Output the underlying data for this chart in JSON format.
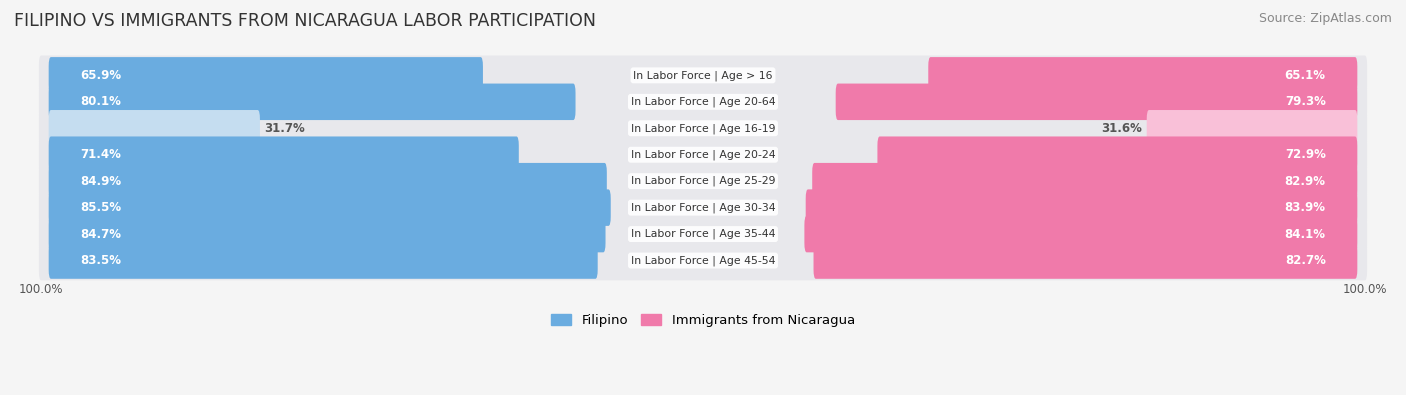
{
  "title": "FILIPINO VS IMMIGRANTS FROM NICARAGUA LABOR PARTICIPATION",
  "source": "Source: ZipAtlas.com",
  "categories": [
    "In Labor Force | Age > 16",
    "In Labor Force | Age 20-64",
    "In Labor Force | Age 16-19",
    "In Labor Force | Age 20-24",
    "In Labor Force | Age 25-29",
    "In Labor Force | Age 30-34",
    "In Labor Force | Age 35-44",
    "In Labor Force | Age 45-54"
  ],
  "filipino_values": [
    65.9,
    80.1,
    31.7,
    71.4,
    84.9,
    85.5,
    84.7,
    83.5
  ],
  "nicaragua_values": [
    65.1,
    79.3,
    31.6,
    72.9,
    82.9,
    83.9,
    84.1,
    82.7
  ],
  "filipino_color": "#6aace0",
  "nicaragua_color": "#f07aaa",
  "filipino_light_color": "#c5ddf0",
  "nicaragua_light_color": "#f9c0d8",
  "row_bg_color": "#e8e8ec",
  "background_color": "#f5f5f5",
  "label_white": "#ffffff",
  "label_dark": "#555555",
  "threshold_for_white": 45.0,
  "max_value": 100.0,
  "bar_height": 0.68,
  "title_fontsize": 12.5,
  "source_fontsize": 9,
  "bar_label_fontsize": 8.5,
  "category_fontsize": 7.8,
  "legend_fontsize": 9.5,
  "axis_label_fontsize": 8.5
}
